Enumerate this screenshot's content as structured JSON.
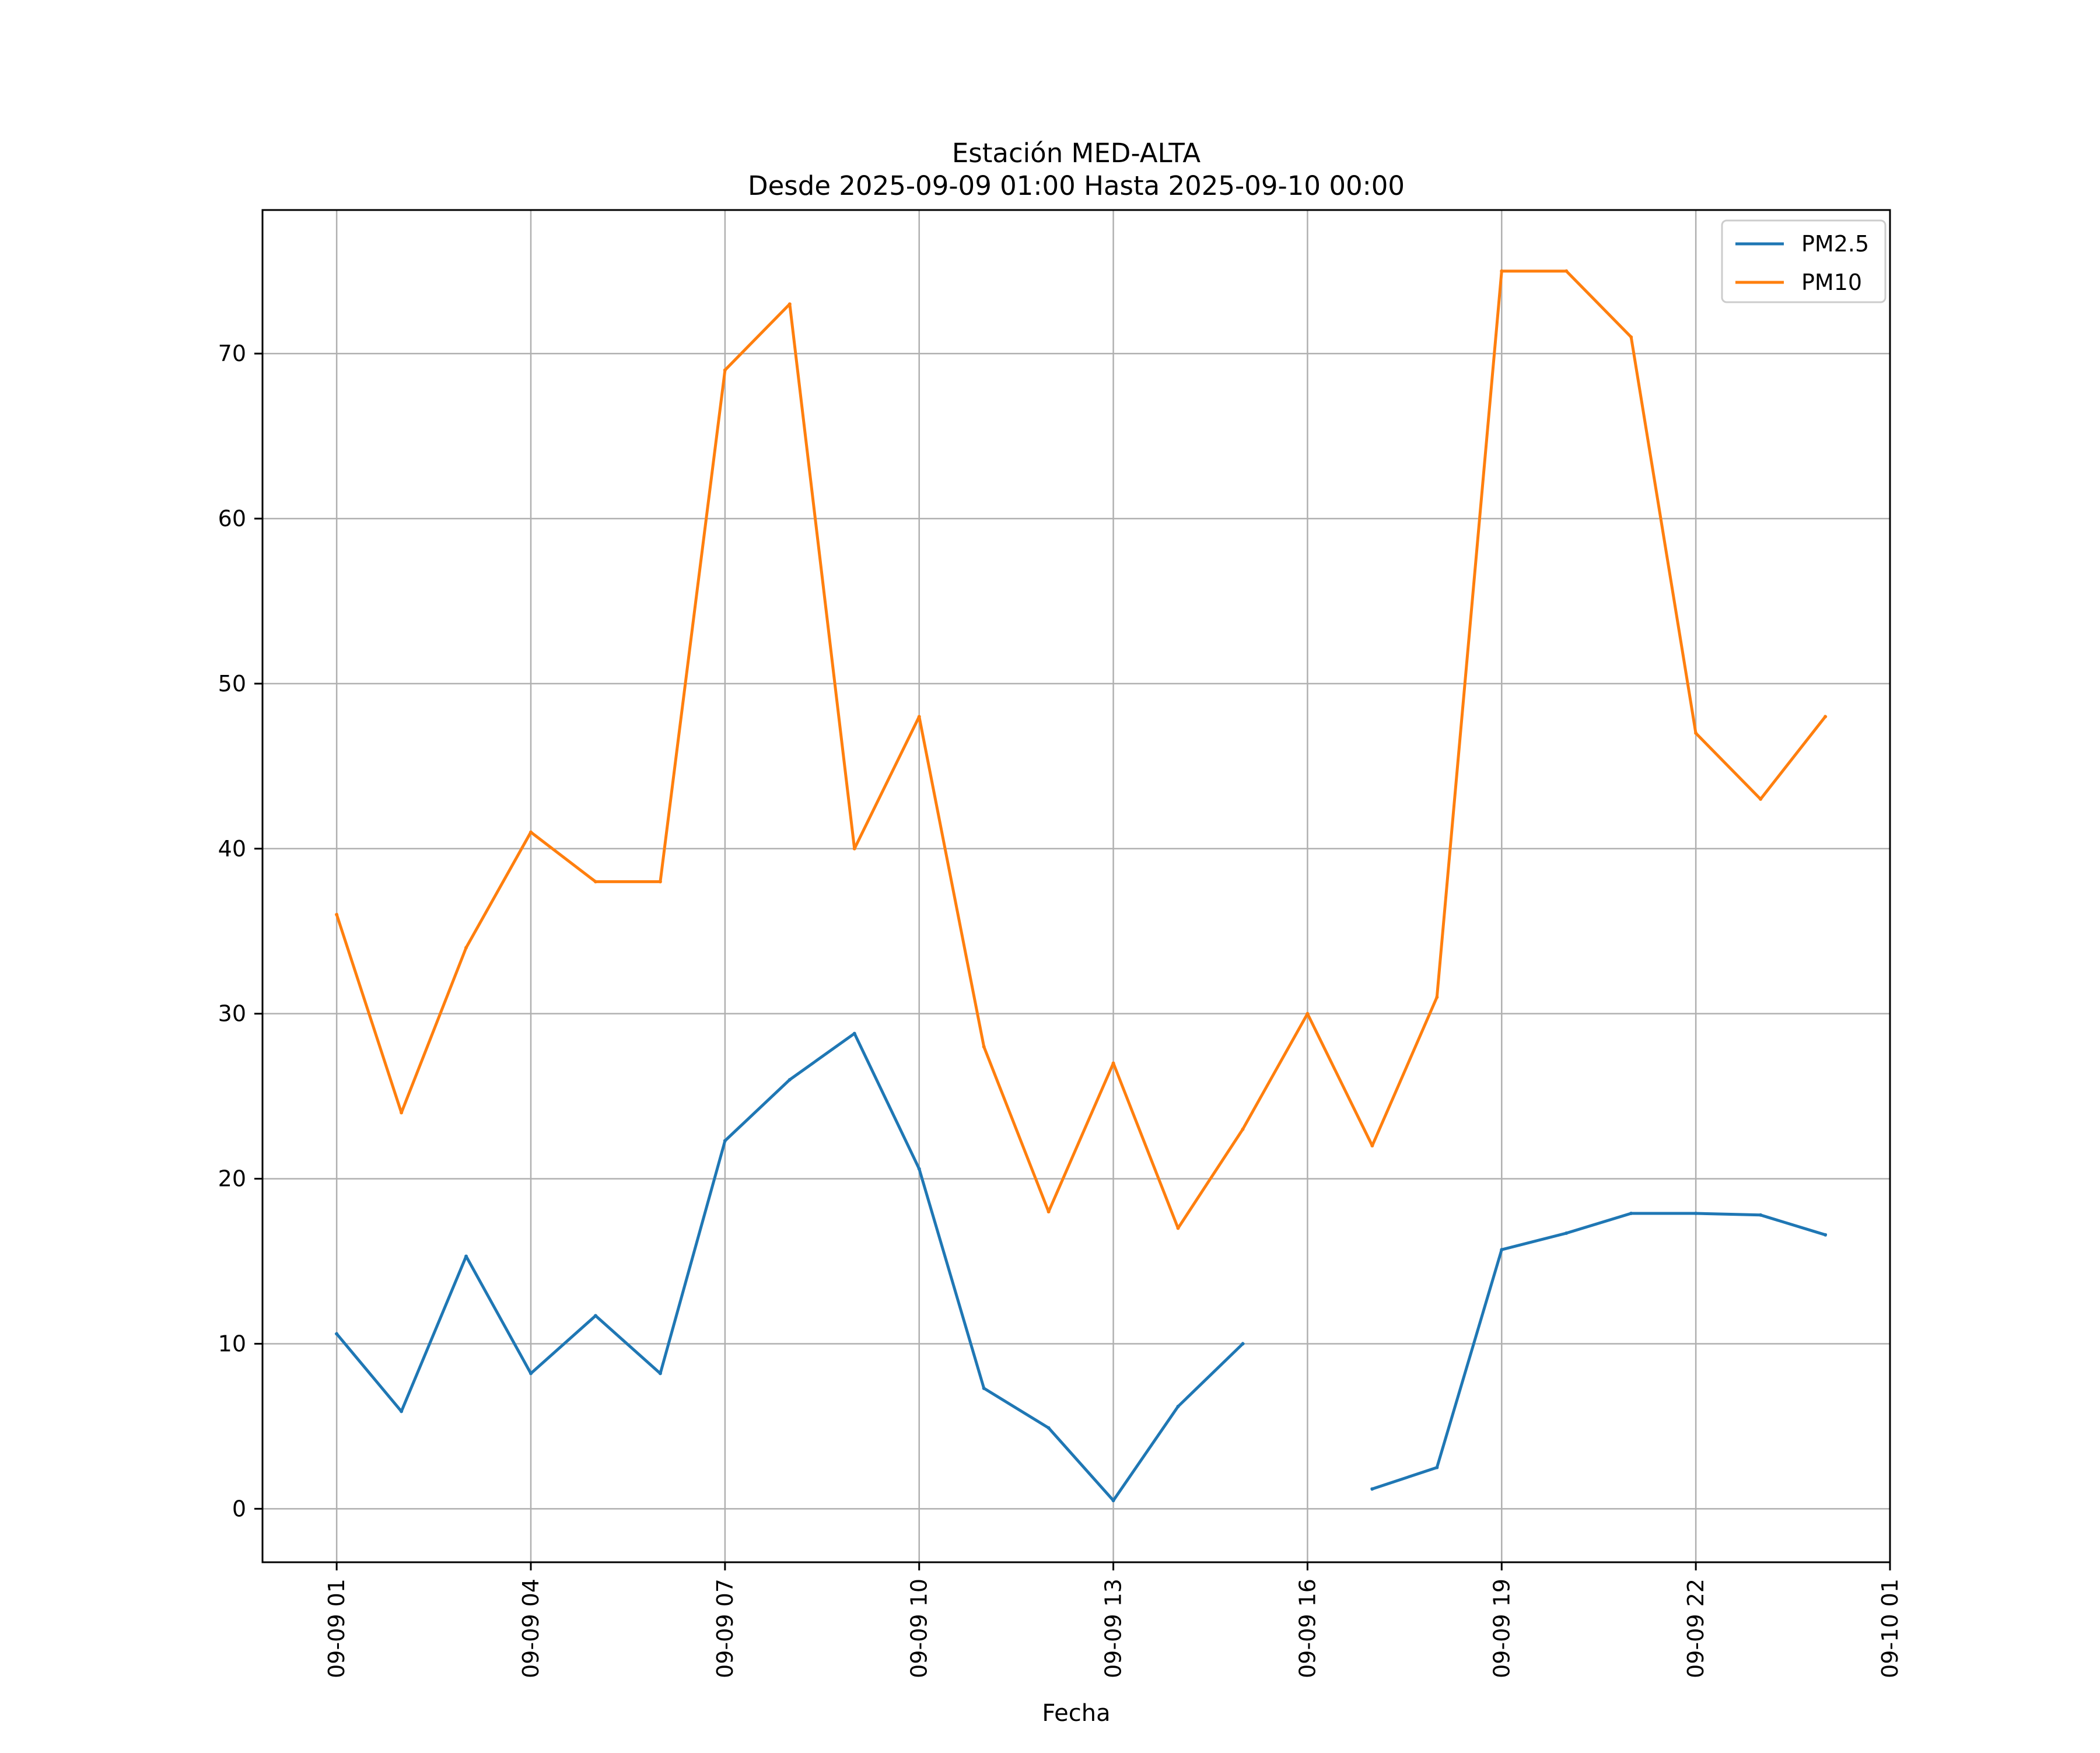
{
  "chart_data": {
    "type": "line",
    "title": "Estación MED-ALTA",
    "subtitle": "Desde 2025-09-09 01:00 Hasta 2025-09-10 00:00",
    "xlabel": "Fecha",
    "ylabel": "",
    "x_unit": "hours since 2025-09-09 00:00",
    "x": [
      1,
      2,
      3,
      4,
      5,
      6,
      7,
      8,
      9,
      10,
      11,
      12,
      13,
      14,
      15,
      16,
      17,
      18,
      19,
      20,
      21,
      22,
      23,
      24
    ],
    "xlim": [
      -0.146,
      25.0
    ],
    "ylim": [
      -3.24,
      78.7
    ],
    "x_ticks": [
      {
        "value": 1,
        "label": "09-09 01"
      },
      {
        "value": 4,
        "label": "09-09 04"
      },
      {
        "value": 7,
        "label": "09-09 07"
      },
      {
        "value": 10,
        "label": "09-09 10"
      },
      {
        "value": 13,
        "label": "09-09 13"
      },
      {
        "value": 16,
        "label": "09-09 16"
      },
      {
        "value": 19,
        "label": "09-09 19"
      },
      {
        "value": 22,
        "label": "09-09 22"
      },
      {
        "value": 25,
        "label": "09-10 01"
      }
    ],
    "y_ticks": [
      {
        "value": 0,
        "label": "0"
      },
      {
        "value": 10,
        "label": "10"
      },
      {
        "value": 20,
        "label": "20"
      },
      {
        "value": 30,
        "label": "30"
      },
      {
        "value": 40,
        "label": "40"
      },
      {
        "value": 50,
        "label": "50"
      },
      {
        "value": 60,
        "label": "60"
      },
      {
        "value": 70,
        "label": "70"
      }
    ],
    "grid": true,
    "legend_position": "top-right",
    "series": [
      {
        "name": "PM2.5",
        "color": "#1f77b4",
        "values": [
          10.6,
          5.9,
          15.3,
          8.2,
          11.7,
          8.2,
          22.3,
          26.0,
          28.8,
          20.6,
          7.3,
          4.9,
          0.5,
          6.2,
          10.0,
          null,
          1.2,
          2.5,
          15.7,
          16.7,
          17.9,
          17.9,
          17.8,
          16.6
        ]
      },
      {
        "name": "PM10",
        "color": "#ff7f0e",
        "values": [
          36,
          24,
          34,
          41,
          38,
          38,
          69,
          73,
          40,
          48,
          28,
          18,
          27,
          17,
          23,
          30,
          22,
          31,
          75,
          75,
          71,
          47,
          43,
          48
        ]
      }
    ]
  }
}
